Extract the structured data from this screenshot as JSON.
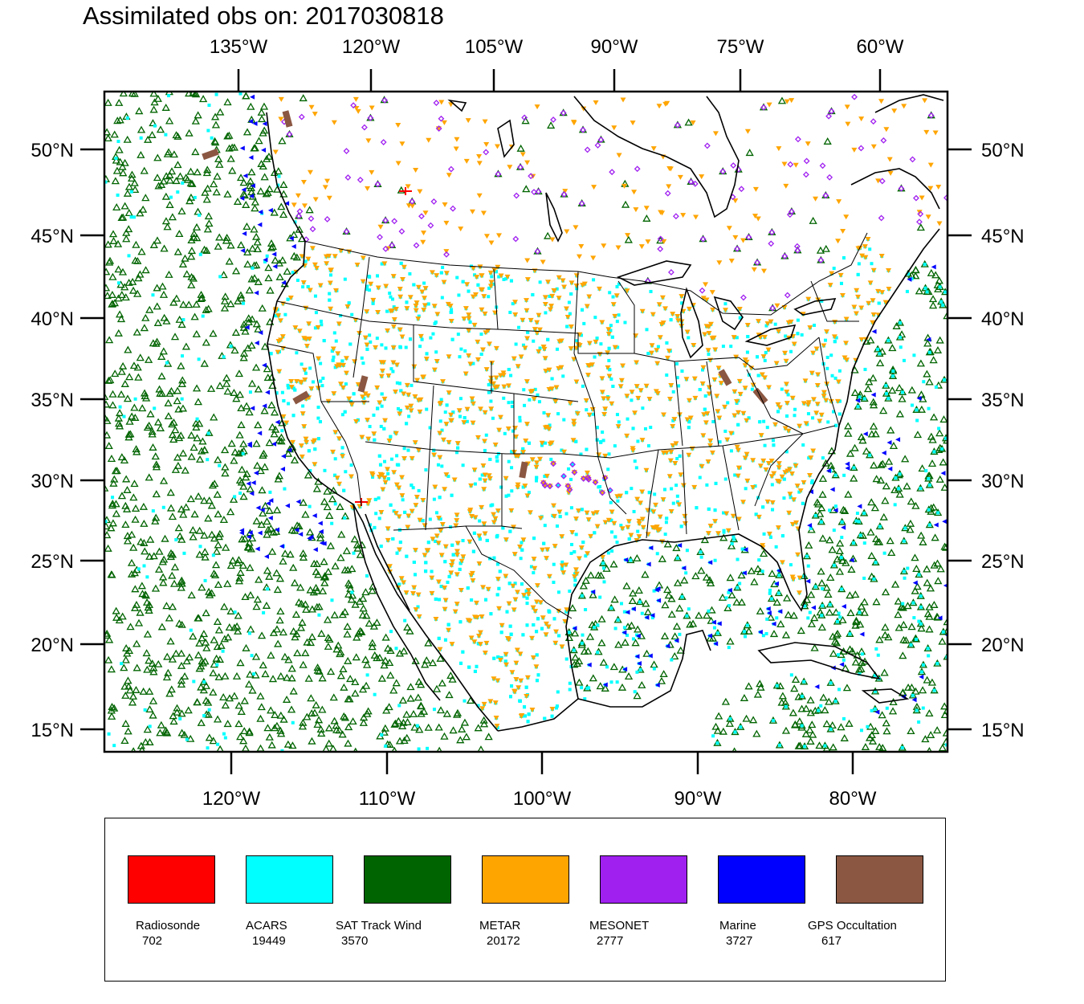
{
  "title": "Assimilated obs on: 2017030818",
  "map": {
    "top_lon_ticks": [
      "135°W",
      "120°W",
      "105°W",
      "90°W",
      "75°W",
      "60°W"
    ],
    "bottom_lon_ticks": [
      "120°W",
      "110°W",
      "100°W",
      "90°W",
      "80°W"
    ],
    "lat_ticks": [
      "50°N",
      "45°N",
      "40°N",
      "35°N",
      "30°N",
      "25°N",
      "20°N",
      "15°N"
    ],
    "land_color": "#ffffff",
    "coast_color": "#000000"
  },
  "legend": {
    "items": [
      {
        "label": "Radiosonde",
        "count": "702",
        "color": "#ff0000"
      },
      {
        "label": "ACARS",
        "count": "19449",
        "color": "#00ffff"
      },
      {
        "label": "SAT Track Wind",
        "count": "3570",
        "color": "#006400"
      },
      {
        "label": "METAR",
        "count": "20172",
        "color": "#ffa500"
      },
      {
        "label": "MESONET",
        "count": "2777",
        "color": "#a020f0"
      },
      {
        "label": "Marine",
        "count": "3727",
        "color": "#0000ff"
      },
      {
        "label": "GPS Occultation",
        "count": "617",
        "color": "#8b5742"
      }
    ]
  }
}
